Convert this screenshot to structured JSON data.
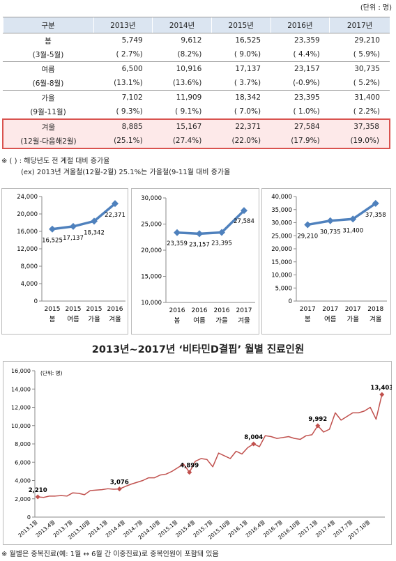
{
  "unit": "(단위 : 명)",
  "table": {
    "header": [
      "구분",
      "2013년",
      "2014년",
      "2015년",
      "2016년",
      "2017년"
    ],
    "rows": [
      {
        "label": "봄",
        "sublabel": "(3월-5월)",
        "values": [
          "5,749",
          "9,612",
          "16,525",
          "23,359",
          "29,210"
        ],
        "rates": [
          "( 2.7%)",
          "(8.2%)",
          "( 9.0%)",
          "( 4.4%)",
          "( 5.9%)"
        ]
      },
      {
        "label": "여름",
        "sublabel": "(6월-8월)",
        "values": [
          "6,500",
          "10,916",
          "17,137",
          "23,157",
          "30,735"
        ],
        "rates": [
          "(13.1%)",
          "(13.6%)",
          "( 3.7%)",
          "(-0.9%)",
          "( 5.2%)"
        ]
      },
      {
        "label": "가을",
        "sublabel": "(9월-11월)",
        "values": [
          "7,102",
          "11,909",
          "18,342",
          "23,395",
          "31,400"
        ],
        "rates": [
          "( 9.3%)",
          "( 9.1%)",
          "( 7.0%)",
          "( 1.0%)",
          "( 2.2%)"
        ]
      },
      {
        "label": "겨울",
        "sublabel": "(12월-다음해2월)",
        "values": [
          "8,885",
          "15,167",
          "22,371",
          "27,584",
          "37,358"
        ],
        "rates": [
          "(25.1%)",
          "(27.4%)",
          "(22.0%)",
          "(17.9%)",
          "(19.0%)"
        ]
      }
    ]
  },
  "notes": [
    "※ (   ) : 해당년도 전 계절 대비 증가율",
    "(ex) 2013년 겨울철(12월-2월) 25.1%는 가을철(9-11월 대비 증가율"
  ],
  "chart_data": [
    {
      "type": "line",
      "categories": [
        "2015",
        "2015",
        "2015",
        "2016"
      ],
      "category_sublabels": [
        "봄",
        "여름",
        "가을",
        "겨울"
      ],
      "values": [
        16525,
        17137,
        18342,
        22371
      ],
      "value_labels": [
        "16,525",
        "17,137",
        "18,342",
        "22,371"
      ],
      "color": "#4f81bd",
      "ylim": [
        0,
        24000
      ],
      "yticks": [
        0,
        {
          "value": 4000,
          "label": "4,000"
        },
        {
          "value": 8000,
          "label": "8,000"
        },
        {
          "value": 12000,
          "label": "12,000"
        },
        {
          "value": 16000,
          "label": "16,000"
        },
        {
          "value": 20000,
          "label": "20,000"
        },
        {
          "value": 24000,
          "label": "24,000"
        }
      ],
      "grid": false
    },
    {
      "type": "line",
      "categories": [
        "2016",
        "2016",
        "2016",
        "2017"
      ],
      "category_sublabels": [
        "봄",
        "여름",
        "가을",
        "겨울"
      ],
      "values": [
        23359,
        23157,
        23395,
        27584
      ],
      "value_labels": [
        "23,359",
        "23,157",
        "23,395",
        "27,584"
      ],
      "color": "#4f81bd",
      "ylim": [
        10000,
        30000
      ],
      "yticks": [
        {
          "value": 10000,
          "label": "10,000"
        },
        {
          "value": 15000,
          "label": "15,000"
        },
        {
          "value": 20000,
          "label": "20,000"
        },
        {
          "value": 25000,
          "label": "25,000"
        },
        {
          "value": 30000,
          "label": "30,000"
        }
      ],
      "grid": false
    },
    {
      "type": "line",
      "categories": [
        "2017",
        "2017",
        "2017",
        "2018"
      ],
      "category_sublabels": [
        "봄",
        "여름",
        "가을",
        "겨울"
      ],
      "values": [
        29210,
        30735,
        31400,
        37358
      ],
      "value_labels": [
        "29,210",
        "30,735",
        "31,400",
        "37,358"
      ],
      "color": "#4f81bd",
      "ylim": [
        0,
        40000
      ],
      "yticks": [
        0,
        {
          "value": 5000,
          "label": "5,000"
        },
        {
          "value": 10000,
          "label": "10,000"
        },
        {
          "value": 15000,
          "label": "15,000"
        },
        {
          "value": 20000,
          "label": "20,000"
        },
        {
          "value": 25000,
          "label": "25,000"
        },
        {
          "value": 30000,
          "label": "30,000"
        },
        {
          "value": 35000,
          "label": "35,000"
        },
        {
          "value": 40000,
          "label": "40,000"
        }
      ],
      "grid": false
    },
    {
      "type": "line",
      "title": "2013년~2017년 ‘비타민D결핍’ 월별 진료인원",
      "unit": "(단위: 명)",
      "categories": [
        "2013.1월",
        null,
        null,
        "2013.4월",
        null,
        null,
        "2013.7월",
        null,
        null,
        "2013.10월",
        null,
        null,
        "2014.1월",
        null,
        null,
        "2014.4월",
        null,
        null,
        "2014.7월",
        null,
        null,
        "2014.10월",
        null,
        null,
        "2015.1월",
        null,
        null,
        "2015.4월",
        null,
        null,
        "2015.7월",
        null,
        null,
        "2015.10월",
        null,
        null,
        "2016.1월",
        null,
        null,
        "2016.4월",
        null,
        null,
        "2016.7월",
        null,
        null,
        "2016.10월",
        null,
        null,
        "2017.1월",
        null,
        null,
        "2017.4월",
        null,
        null,
        "2017.7월",
        null,
        null,
        "2017.10월",
        null,
        null
      ],
      "values": [
        2210,
        2150,
        2300,
        2300,
        2350,
        2300,
        2650,
        2600,
        2450,
        2900,
        2950,
        3000,
        3100,
        3050,
        3076,
        3350,
        3600,
        3800,
        4000,
        4300,
        4300,
        4600,
        4700,
        5000,
        5400,
        5800,
        4899,
        6100,
        6400,
        6300,
        5500,
        7000,
        6700,
        6400,
        7200,
        6900,
        7600,
        8004,
        7700,
        8900,
        8800,
        8600,
        8700,
        8800,
        8600,
        8500,
        8900,
        9000,
        9992,
        9300,
        9600,
        11400,
        10600,
        11000,
        11400,
        11400,
        11600,
        12000,
        10700,
        13403
      ],
      "value_labels": [
        "2,210",
        null,
        null,
        null,
        null,
        null,
        null,
        null,
        null,
        null,
        null,
        null,
        null,
        null,
        "3,076",
        null,
        null,
        null,
        null,
        null,
        null,
        null,
        null,
        null,
        null,
        null,
        "4,899",
        null,
        null,
        null,
        null,
        null,
        null,
        null,
        null,
        null,
        null,
        "8,004",
        null,
        null,
        null,
        null,
        null,
        null,
        null,
        null,
        null,
        null,
        "9,992",
        null,
        null,
        null,
        null,
        null,
        null,
        null,
        null,
        null,
        null,
        "13,403"
      ],
      "color": "#c0504d",
      "ylim": [
        0,
        16000
      ],
      "yticks": [
        0,
        {
          "value": 2000,
          "label": "2,000"
        },
        {
          "value": 4000,
          "label": "4,000"
        },
        {
          "value": 6000,
          "label": "6,000"
        },
        {
          "value": 8000,
          "label": "8,000"
        },
        {
          "value": 10000,
          "label": "10,000"
        },
        {
          "value": 12000,
          "label": "12,000"
        },
        {
          "value": 14000,
          "label": "14,000"
        },
        {
          "value": 16000,
          "label": "16,000"
        }
      ],
      "grid": false
    }
  ],
  "footnote": "※ 월별은 중복진료(예: 1월 ↔ 6월 간 이중진료)로 중복인원이 포함돼 있음"
}
